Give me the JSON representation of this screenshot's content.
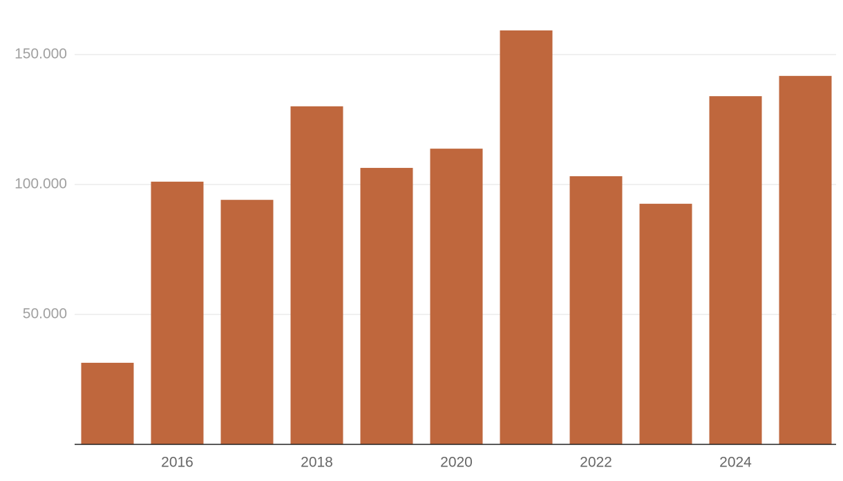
{
  "chart_data": {
    "type": "bar",
    "categories": [
      null,
      "2016",
      null,
      "2018",
      null,
      "2020",
      null,
      "2022",
      null,
      "2024",
      null
    ],
    "values": [
      31400,
      101100,
      94100,
      130100,
      106400,
      113800,
      159300,
      103200,
      92600,
      134000,
      141800
    ],
    "color": "#bf673d",
    "ylim": [
      0,
      160000
    ],
    "yticks": [
      {
        "value": 50000,
        "label": "50.000"
      },
      {
        "value": 100000,
        "label": "100.000"
      },
      {
        "value": 150000,
        "label": "150.000"
      }
    ],
    "grid": true
  }
}
